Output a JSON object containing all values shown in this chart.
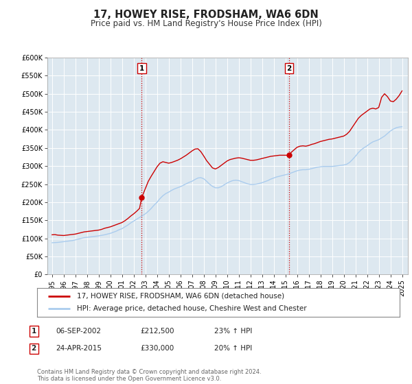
{
  "title": "17, HOWEY RISE, FRODSHAM, WA6 6DN",
  "subtitle": "Price paid vs. HM Land Registry's House Price Index (HPI)",
  "ylim": [
    0,
    600000
  ],
  "yticks": [
    0,
    50000,
    100000,
    150000,
    200000,
    250000,
    300000,
    350000,
    400000,
    450000,
    500000,
    550000,
    600000
  ],
  "xlim_start": 1994.6,
  "xlim_end": 2025.5,
  "background_color": "#ffffff",
  "plot_bg_color": "#dde8f0",
  "grid_color": "#ffffff",
  "red_line_color": "#cc0000",
  "blue_line_color": "#aaccee",
  "transaction1": {
    "date_num": 2002.68,
    "price": 212500,
    "label": "1",
    "date_str": "06-SEP-2002",
    "price_str": "£212,500",
    "pct": "23%"
  },
  "transaction2": {
    "date_num": 2015.31,
    "price": 330000,
    "label": "2",
    "date_str": "24-APR-2015",
    "price_str": "£330,000",
    "pct": "20%"
  },
  "vline_color": "#cc0000",
  "marker_color": "#cc0000",
  "legend_red_label": "17, HOWEY RISE, FRODSHAM, WA6 6DN (detached house)",
  "legend_blue_label": "HPI: Average price, detached house, Cheshire West and Chester",
  "footer_text": "Contains HM Land Registry data © Crown copyright and database right 2024.\nThis data is licensed under the Open Government Licence v3.0.",
  "title_fontsize": 10.5,
  "subtitle_fontsize": 8.5,
  "tick_fontsize": 7,
  "legend_fontsize": 7.5,
  "footer_fontsize": 6,
  "annotation_fontsize": 7.5,
  "red_hpi_data": [
    [
      1995.0,
      110000
    ],
    [
      1995.25,
      110500
    ],
    [
      1995.5,
      109000
    ],
    [
      1995.75,
      108500
    ],
    [
      1996.0,
      108000
    ],
    [
      1996.25,
      109000
    ],
    [
      1996.5,
      110000
    ],
    [
      1996.75,
      111000
    ],
    [
      1997.0,
      112000
    ],
    [
      1997.25,
      114000
    ],
    [
      1997.5,
      116000
    ],
    [
      1997.75,
      118000
    ],
    [
      1998.0,
      119000
    ],
    [
      1998.25,
      120000
    ],
    [
      1998.5,
      121000
    ],
    [
      1998.75,
      122000
    ],
    [
      1999.0,
      123000
    ],
    [
      1999.25,
      125000
    ],
    [
      1999.5,
      128000
    ],
    [
      1999.75,
      130000
    ],
    [
      2000.0,
      132000
    ],
    [
      2000.25,
      135000
    ],
    [
      2000.5,
      138000
    ],
    [
      2000.75,
      141000
    ],
    [
      2001.0,
      144000
    ],
    [
      2001.25,
      149000
    ],
    [
      2001.5,
      155000
    ],
    [
      2001.75,
      162000
    ],
    [
      2002.0,
      168000
    ],
    [
      2002.25,
      175000
    ],
    [
      2002.5,
      183000
    ],
    [
      2002.68,
      212500
    ],
    [
      2003.0,
      238000
    ],
    [
      2003.25,
      258000
    ],
    [
      2003.5,
      272000
    ],
    [
      2003.75,
      285000
    ],
    [
      2004.0,
      298000
    ],
    [
      2004.25,
      308000
    ],
    [
      2004.5,
      312000
    ],
    [
      2004.75,
      310000
    ],
    [
      2005.0,
      308000
    ],
    [
      2005.25,
      310000
    ],
    [
      2005.5,
      313000
    ],
    [
      2005.75,
      316000
    ],
    [
      2006.0,
      320000
    ],
    [
      2006.25,
      325000
    ],
    [
      2006.5,
      330000
    ],
    [
      2006.75,
      336000
    ],
    [
      2007.0,
      342000
    ],
    [
      2007.25,
      347000
    ],
    [
      2007.5,
      348000
    ],
    [
      2007.75,
      340000
    ],
    [
      2008.0,
      328000
    ],
    [
      2008.25,
      315000
    ],
    [
      2008.5,
      305000
    ],
    [
      2008.75,
      295000
    ],
    [
      2009.0,
      292000
    ],
    [
      2009.25,
      296000
    ],
    [
      2009.5,
      302000
    ],
    [
      2009.75,
      308000
    ],
    [
      2010.0,
      314000
    ],
    [
      2010.25,
      318000
    ],
    [
      2010.5,
      320000
    ],
    [
      2010.75,
      322000
    ],
    [
      2011.0,
      323000
    ],
    [
      2011.25,
      322000
    ],
    [
      2011.5,
      320000
    ],
    [
      2011.75,
      318000
    ],
    [
      2012.0,
      316000
    ],
    [
      2012.25,
      316000
    ],
    [
      2012.5,
      317000
    ],
    [
      2012.75,
      319000
    ],
    [
      2013.0,
      321000
    ],
    [
      2013.25,
      323000
    ],
    [
      2013.5,
      325000
    ],
    [
      2013.75,
      327000
    ],
    [
      2014.0,
      328000
    ],
    [
      2014.25,
      329000
    ],
    [
      2014.5,
      330000
    ],
    [
      2014.75,
      330000
    ],
    [
      2015.0,
      330000
    ],
    [
      2015.31,
      330000
    ],
    [
      2015.5,
      338000
    ],
    [
      2015.75,
      345000
    ],
    [
      2016.0,
      352000
    ],
    [
      2016.25,
      355000
    ],
    [
      2016.5,
      356000
    ],
    [
      2016.75,
      355000
    ],
    [
      2017.0,
      357000
    ],
    [
      2017.25,
      360000
    ],
    [
      2017.5,
      362000
    ],
    [
      2017.75,
      365000
    ],
    [
      2018.0,
      368000
    ],
    [
      2018.25,
      370000
    ],
    [
      2018.5,
      372000
    ],
    [
      2018.75,
      374000
    ],
    [
      2019.0,
      375000
    ],
    [
      2019.25,
      377000
    ],
    [
      2019.5,
      379000
    ],
    [
      2019.75,
      381000
    ],
    [
      2020.0,
      383000
    ],
    [
      2020.25,
      388000
    ],
    [
      2020.5,
      396000
    ],
    [
      2020.75,
      408000
    ],
    [
      2021.0,
      420000
    ],
    [
      2021.25,
      432000
    ],
    [
      2021.5,
      440000
    ],
    [
      2021.75,
      446000
    ],
    [
      2022.0,
      452000
    ],
    [
      2022.25,
      458000
    ],
    [
      2022.5,
      460000
    ],
    [
      2022.75,
      458000
    ],
    [
      2023.0,
      462000
    ],
    [
      2023.25,
      490000
    ],
    [
      2023.5,
      500000
    ],
    [
      2023.75,
      492000
    ],
    [
      2024.0,
      480000
    ],
    [
      2024.25,
      478000
    ],
    [
      2024.5,
      485000
    ],
    [
      2024.75,
      495000
    ],
    [
      2025.0,
      508000
    ]
  ],
  "blue_hpi_data": [
    [
      1995.0,
      88000
    ],
    [
      1995.25,
      88500
    ],
    [
      1995.5,
      89000
    ],
    [
      1995.75,
      90000
    ],
    [
      1996.0,
      91000
    ],
    [
      1996.25,
      92000
    ],
    [
      1996.5,
      93000
    ],
    [
      1996.75,
      94000
    ],
    [
      1997.0,
      96000
    ],
    [
      1997.25,
      98000
    ],
    [
      1997.5,
      100000
    ],
    [
      1997.75,
      102000
    ],
    [
      1998.0,
      103000
    ],
    [
      1998.25,
      104000
    ],
    [
      1998.5,
      105000
    ],
    [
      1998.75,
      106000
    ],
    [
      1999.0,
      107000
    ],
    [
      1999.25,
      108500
    ],
    [
      1999.5,
      110000
    ],
    [
      1999.75,
      112000
    ],
    [
      2000.0,
      114000
    ],
    [
      2000.25,
      117000
    ],
    [
      2000.5,
      120000
    ],
    [
      2000.75,
      124000
    ],
    [
      2001.0,
      127000
    ],
    [
      2001.25,
      132000
    ],
    [
      2001.5,
      137000
    ],
    [
      2001.75,
      143000
    ],
    [
      2002.0,
      148000
    ],
    [
      2002.25,
      153000
    ],
    [
      2002.5,
      158000
    ],
    [
      2002.75,
      163000
    ],
    [
      2003.0,
      168000
    ],
    [
      2003.25,
      175000
    ],
    [
      2003.5,
      183000
    ],
    [
      2003.75,
      192000
    ],
    [
      2004.0,
      200000
    ],
    [
      2004.25,
      210000
    ],
    [
      2004.5,
      218000
    ],
    [
      2004.75,
      224000
    ],
    [
      2005.0,
      228000
    ],
    [
      2005.25,
      233000
    ],
    [
      2005.5,
      237000
    ],
    [
      2005.75,
      240000
    ],
    [
      2006.0,
      243000
    ],
    [
      2006.25,
      247000
    ],
    [
      2006.5,
      251000
    ],
    [
      2006.75,
      255000
    ],
    [
      2007.0,
      258000
    ],
    [
      2007.25,
      263000
    ],
    [
      2007.5,
      267000
    ],
    [
      2007.75,
      268000
    ],
    [
      2008.0,
      265000
    ],
    [
      2008.25,
      258000
    ],
    [
      2008.5,
      250000
    ],
    [
      2008.75,
      244000
    ],
    [
      2009.0,
      240000
    ],
    [
      2009.25,
      240000
    ],
    [
      2009.5,
      243000
    ],
    [
      2009.75,
      248000
    ],
    [
      2010.0,
      253000
    ],
    [
      2010.25,
      257000
    ],
    [
      2010.5,
      260000
    ],
    [
      2010.75,
      261000
    ],
    [
      2011.0,
      260000
    ],
    [
      2011.25,
      257000
    ],
    [
      2011.5,
      254000
    ],
    [
      2011.75,
      251000
    ],
    [
      2012.0,
      249000
    ],
    [
      2012.25,
      249000
    ],
    [
      2012.5,
      250000
    ],
    [
      2012.75,
      252000
    ],
    [
      2013.0,
      254000
    ],
    [
      2013.25,
      257000
    ],
    [
      2013.5,
      260000
    ],
    [
      2013.75,
      264000
    ],
    [
      2014.0,
      267000
    ],
    [
      2014.25,
      270000
    ],
    [
      2014.5,
      272000
    ],
    [
      2014.75,
      274000
    ],
    [
      2015.0,
      276000
    ],
    [
      2015.25,
      278000
    ],
    [
      2015.5,
      281000
    ],
    [
      2015.75,
      284000
    ],
    [
      2016.0,
      287000
    ],
    [
      2016.25,
      289000
    ],
    [
      2016.5,
      290000
    ],
    [
      2016.75,
      290000
    ],
    [
      2017.0,
      291000
    ],
    [
      2017.25,
      293000
    ],
    [
      2017.5,
      295000
    ],
    [
      2017.75,
      297000
    ],
    [
      2018.0,
      298000
    ],
    [
      2018.25,
      299000
    ],
    [
      2018.5,
      299000
    ],
    [
      2018.75,
      299000
    ],
    [
      2019.0,
      299000
    ],
    [
      2019.25,
      300000
    ],
    [
      2019.5,
      301000
    ],
    [
      2019.75,
      302000
    ],
    [
      2020.0,
      303000
    ],
    [
      2020.25,
      305000
    ],
    [
      2020.5,
      310000
    ],
    [
      2020.75,
      318000
    ],
    [
      2021.0,
      327000
    ],
    [
      2021.25,
      337000
    ],
    [
      2021.5,
      345000
    ],
    [
      2021.75,
      351000
    ],
    [
      2022.0,
      356000
    ],
    [
      2022.25,
      362000
    ],
    [
      2022.5,
      367000
    ],
    [
      2022.75,
      370000
    ],
    [
      2023.0,
      373000
    ],
    [
      2023.25,
      378000
    ],
    [
      2023.5,
      383000
    ],
    [
      2023.75,
      390000
    ],
    [
      2024.0,
      397000
    ],
    [
      2024.25,
      402000
    ],
    [
      2024.5,
      406000
    ],
    [
      2024.75,
      408000
    ],
    [
      2025.0,
      409000
    ]
  ]
}
